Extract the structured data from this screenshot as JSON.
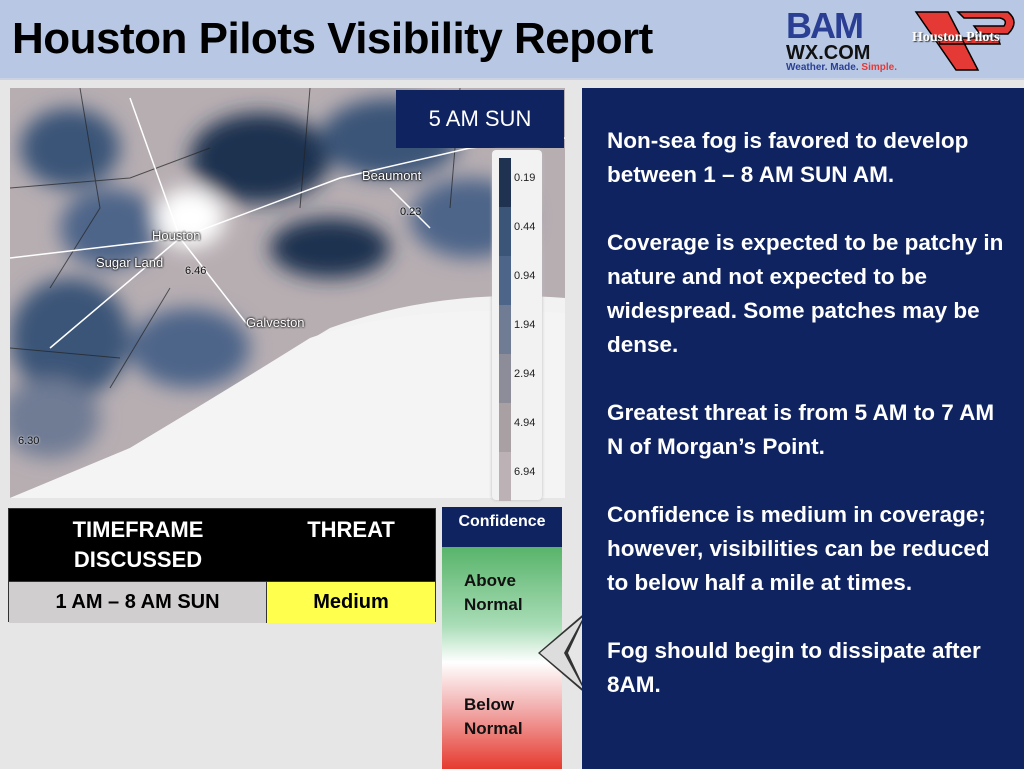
{
  "header": {
    "title": "Houston Pilots Visibility Report",
    "logo_bam": "BAM",
    "logo_wx": "WX.COM",
    "logo_tagline": [
      "Weather.",
      "Made.",
      "Simple."
    ],
    "logo_hp": "Houston Pilots"
  },
  "map": {
    "time_label": "5 AM SUN",
    "cities": [
      "Beaumont",
      "Houston",
      "Sugar Land",
      "Galveston"
    ],
    "values": [
      "6.46",
      "0.23",
      "6.30"
    ],
    "legend": [
      {
        "value": "0.19",
        "color": "#1f3350"
      },
      {
        "value": "0.44",
        "color": "#3b5578"
      },
      {
        "value": "0.94",
        "color": "#4d6589"
      },
      {
        "value": "1.94",
        "color": "#6f7c94"
      },
      {
        "value": "2.94",
        "color": "#8d8d99"
      },
      {
        "value": "4.94",
        "color": "#a9a0a3"
      },
      {
        "value": "6.94",
        "color": "#bcb1b5"
      }
    ]
  },
  "table": {
    "headers": [
      "TIMEFRAME DISCUSSED",
      "THREAT"
    ],
    "timeframe": "1 AM – 8 AM SUN",
    "threat": "Medium",
    "threat_color": "#ffff4d"
  },
  "confidence": {
    "title": "Confidence",
    "above": "Above Normal",
    "below": "Below Normal",
    "level": 0.5
  },
  "panel": {
    "paragraphs": [
      "Non-sea fog is favored to develop between 1 – 8 AM SUN AM.",
      "Coverage is expected to be patchy in nature and not expected to be widespread. Some patches may be dense.",
      "Greatest threat is from 5 AM to 7 AM N of Morgan’s Point.",
      "Confidence is medium in coverage; however, visibilities can be reduced to below half a mile at times.",
      "Fog should begin to dissipate after 8AM."
    ]
  }
}
